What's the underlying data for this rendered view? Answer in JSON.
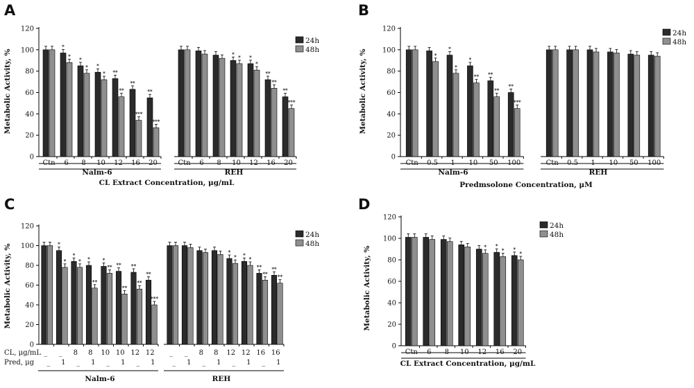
{
  "legend": [
    "24h",
    "48h"
  ],
  "colors": {
    "s24": "#2b2b2b",
    "s48": "#8f8f8f"
  },
  "chart_data": [
    {
      "type": "bar",
      "letter": "A",
      "ylabel": "Metabolic Activity, %",
      "xlabel": "CL Extract Concentration, μg/mL",
      "ylim": [
        0,
        120
      ],
      "yticks": [
        0,
        20,
        40,
        60,
        80,
        100,
        120
      ],
      "groups": [
        {
          "name": "Nalm-6",
          "categories": [
            "Ctn",
            "6",
            "8",
            "10",
            "12",
            "16",
            "20"
          ],
          "series": [
            {
              "name": "24h",
              "values": [
                100,
                97,
                85,
                79,
                73,
                63,
                55
              ],
              "sig": [
                "",
                "*",
                "*",
                "*",
                "**",
                "**",
                "**"
              ]
            },
            {
              "name": "48h",
              "values": [
                100,
                88,
                78,
                72,
                56,
                34,
                27
              ],
              "sig": [
                "",
                "*",
                "*",
                "*",
                "**",
                "***",
                "***"
              ]
            }
          ]
        },
        {
          "name": "REH",
          "categories": [
            "Ctn",
            "6",
            "8",
            "10",
            "12",
            "16",
            "20"
          ],
          "series": [
            {
              "name": "24h",
              "values": [
                100,
                99,
                95,
                90,
                87,
                72,
                56
              ],
              "sig": [
                "",
                "",
                "",
                "*",
                "*",
                "**",
                "**"
              ]
            },
            {
              "name": "48h",
              "values": [
                100,
                96,
                92,
                87,
                81,
                64,
                45
              ],
              "sig": [
                "",
                "",
                "",
                "*",
                "*",
                "**",
                "***"
              ]
            }
          ]
        }
      ]
    },
    {
      "type": "bar",
      "letter": "B",
      "ylabel": "Metabolic Activity, %",
      "xlabel": "Predmsolone Concentration, μM",
      "ylim": [
        0,
        120
      ],
      "yticks": [
        0,
        20,
        40,
        60,
        80,
        100,
        120
      ],
      "groups": [
        {
          "name": "Nalm-6",
          "categories": [
            "Ctn",
            "0.5",
            "1",
            "10",
            "50",
            "100"
          ],
          "series": [
            {
              "name": "24h",
              "values": [
                100,
                99,
                95,
                85,
                71,
                60
              ],
              "sig": [
                "",
                "",
                "*",
                "*",
                "**",
                "**"
              ]
            },
            {
              "name": "48h",
              "values": [
                100,
                89,
                78,
                69,
                56,
                45
              ],
              "sig": [
                "",
                "*",
                "*",
                "**",
                "**",
                "***"
              ]
            }
          ]
        },
        {
          "name": "REH",
          "categories": [
            "Ctn",
            "0.5",
            "1",
            "10",
            "50",
            "100"
          ],
          "series": [
            {
              "name": "24h",
              "values": [
                100,
                100,
                100,
                98,
                96,
                95
              ],
              "sig": [
                "",
                "",
                "",
                "",
                "",
                ""
              ]
            },
            {
              "name": "48h",
              "values": [
                100,
                100,
                98,
                97,
                95,
                94
              ],
              "sig": [
                "",
                "",
                "",
                "",
                "",
                ""
              ]
            }
          ]
        }
      ]
    },
    {
      "type": "bar",
      "letter": "C",
      "ylabel": "Metabolic Activity, %",
      "xlabel": "",
      "ylim": [
        0,
        120
      ],
      "yticks": [
        0,
        20,
        40,
        60,
        80,
        100,
        120
      ],
      "row_labels": [
        "CL, μg/mL",
        "Pred, μg"
      ],
      "groups": [
        {
          "name": "Nalm-6",
          "cl": [
            "_",
            "_",
            "8",
            "8",
            "10",
            "10",
            "12",
            "12"
          ],
          "pred": [
            "_",
            "1",
            "_",
            "1",
            "_",
            "1",
            "_",
            "1"
          ],
          "series": [
            {
              "name": "24h",
              "values": [
                100,
                95,
                84,
                80,
                79,
                74,
                73,
                65
              ],
              "sig": [
                "",
                "*",
                "*",
                "*",
                "*",
                "**",
                "**",
                "**"
              ]
            },
            {
              "name": "48h",
              "values": [
                100,
                78,
                78,
                57,
                72,
                51,
                56,
                40
              ],
              "sig": [
                "",
                "*",
                "*",
                "**",
                "**",
                "**",
                "**",
                "***"
              ]
            }
          ]
        },
        {
          "name": "REH",
          "cl": [
            "_",
            "_",
            "8",
            "8",
            "12",
            "12",
            "16",
            "16"
          ],
          "pred": [
            "_",
            "1",
            "_",
            "1",
            "_",
            "1",
            "_",
            "1"
          ],
          "series": [
            {
              "name": "24h",
              "values": [
                100,
                100,
                95,
                95,
                87,
                84,
                72,
                70
              ],
              "sig": [
                "",
                "",
                "",
                "",
                "*",
                "*",
                "**",
                "**"
              ]
            },
            {
              "name": "48h",
              "values": [
                100,
                98,
                93,
                91,
                82,
                80,
                65,
                62
              ],
              "sig": [
                "",
                "",
                "",
                "",
                "*",
                "*",
                "**",
                "**"
              ]
            }
          ]
        }
      ]
    },
    {
      "type": "bar",
      "letter": "D",
      "ylabel": "Metabolic Activity, %",
      "xlabel": "CL Extract Concentration, μg/mL",
      "ylim": [
        0,
        120
      ],
      "yticks": [
        0,
        20,
        40,
        60,
        80,
        100,
        120
      ],
      "groups": [
        {
          "name": "",
          "categories": [
            "Ctn",
            "6",
            "8",
            "10",
            "12",
            "16",
            "20"
          ],
          "series": [
            {
              "name": "24h",
              "values": [
                101,
                101,
                99,
                94,
                90,
                87,
                84
              ],
              "sig": [
                "",
                "",
                "",
                "",
                "",
                "*",
                "*"
              ]
            },
            {
              "name": "48h",
              "values": [
                101,
                99,
                97,
                92,
                86,
                83,
                80
              ],
              "sig": [
                "",
                "",
                "",
                "",
                "*",
                "*",
                "*"
              ]
            }
          ]
        }
      ]
    }
  ]
}
